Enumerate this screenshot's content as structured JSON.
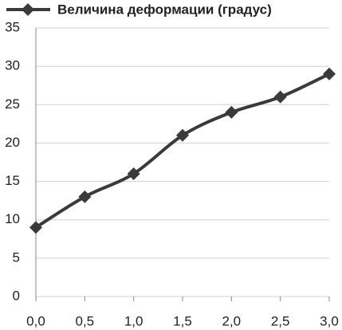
{
  "chart_data": {
    "type": "line",
    "x": [
      0,
      0.5,
      1,
      1.5,
      2,
      2.5,
      3
    ],
    "series": [
      {
        "name": "Величина деформации (градус)",
        "color": "#3a3a3a",
        "values": [
          9,
          13,
          16,
          21,
          24,
          26,
          29
        ]
      }
    ],
    "xlim": [
      0,
      3
    ],
    "xticks": [
      {
        "value": 0,
        "label": "0,0"
      },
      {
        "value": 0.5,
        "label": "0,5"
      },
      {
        "value": 1,
        "label": "1,0"
      },
      {
        "value": 1.5,
        "label": "1,5"
      },
      {
        "value": 2,
        "label": "2,0"
      },
      {
        "value": 2.5,
        "label": "2,5"
      },
      {
        "value": 3,
        "label": "3,0"
      }
    ],
    "ylim": [
      0,
      35
    ],
    "yticks": [
      0,
      5,
      10,
      15,
      20,
      25,
      30,
      35
    ],
    "grid": true,
    "legend": "top"
  }
}
